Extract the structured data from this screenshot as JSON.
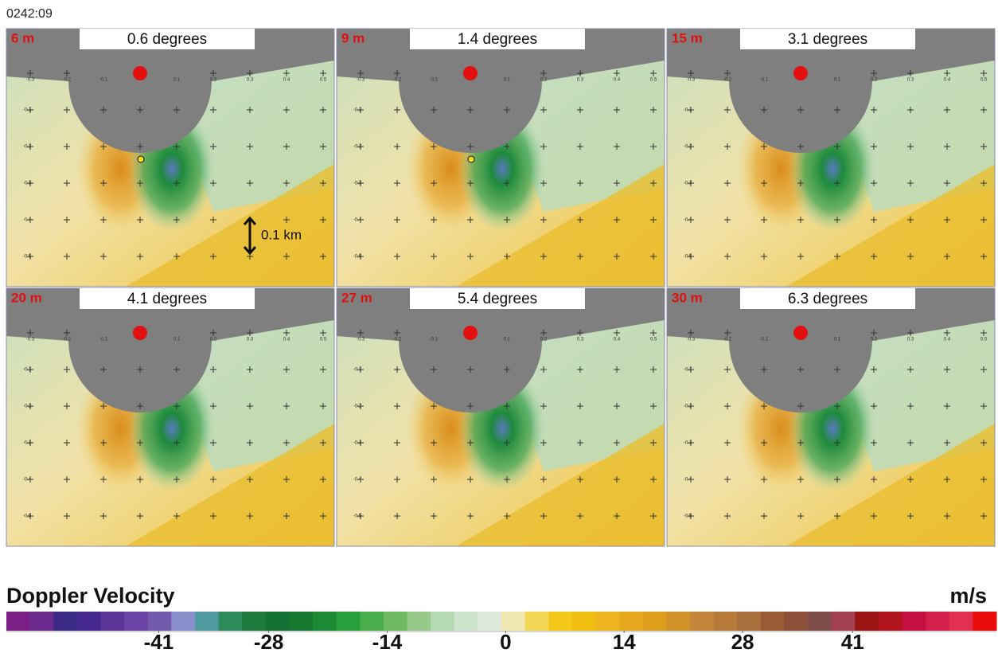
{
  "timestamp": "0242:09",
  "panels": [
    {
      "height": "6 m",
      "elevation": "0.6 degrees"
    },
    {
      "height": "9 m",
      "elevation": "1.4 degrees"
    },
    {
      "height": "15 m",
      "elevation": "3.1 degrees"
    },
    {
      "height": "20 m",
      "elevation": "4.1 degrees"
    },
    {
      "height": "27 m",
      "elevation": "5.4 degrees"
    },
    {
      "height": "30 m",
      "elevation": "6.3 degrees"
    }
  ],
  "scale_annotation": "0.1 km",
  "grid_x_labels": [
    "-0.3",
    "-0.2",
    "-0.1",
    "0.1",
    "0.2",
    "0.3",
    "0.4",
    "0.5"
  ],
  "grid_y_labels": [
    "-0.1",
    "-0.2",
    "-0.3",
    "-0.4",
    "-0.5"
  ],
  "colorbar": {
    "title": "Doppler Velocity",
    "unit": "m/s",
    "lim": [
      -59,
      58
    ],
    "ticks": [
      -41,
      -28,
      -14,
      0,
      14,
      28,
      41
    ],
    "colors": [
      "#7a1f86",
      "#6b2a8e",
      "#3b2a86",
      "#46288e",
      "#5a3596",
      "#6a44a4",
      "#7159ac",
      "#8b8fcc",
      "#4f9aa0",
      "#2d8a5a",
      "#1e7a3c",
      "#137233",
      "#16782f",
      "#1c8a34",
      "#27a03c",
      "#48ad4a",
      "#6fbb62",
      "#96c98a",
      "#b5d9b0",
      "#cce3cc",
      "#dde8d8",
      "#f0e8b0",
      "#f2d656",
      "#f4c81a",
      "#f0be10",
      "#eeb420",
      "#e6a81c",
      "#dc9e1c",
      "#d09228",
      "#c4863a",
      "#b87a3a",
      "#a8703c",
      "#9a5a34",
      "#8c4f38",
      "#7c4c48",
      "#a24050",
      "#9a1414",
      "#b0141c",
      "#c41040",
      "#d41e4c",
      "#e23050",
      "#e80c0c"
    ]
  }
}
